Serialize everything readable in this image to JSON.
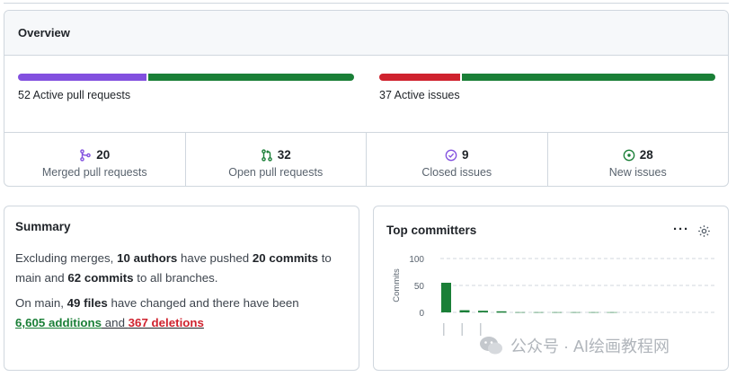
{
  "overview": {
    "title": "Overview",
    "pr_bar": {
      "label": "52 Active pull requests",
      "merged": 20,
      "open": 32
    },
    "issue_bar": {
      "label": "37 Active issues",
      "closed": 9,
      "new": 28
    },
    "stats": [
      {
        "value": "20",
        "label": "Merged pull requests",
        "icon": "merge-icon",
        "color": "#8250df"
      },
      {
        "value": "32",
        "label": "Open pull requests",
        "icon": "pull-request-icon",
        "color": "#1a7f37"
      },
      {
        "value": "9",
        "label": "Closed issues",
        "icon": "check-circle-icon",
        "color": "#8250df"
      },
      {
        "value": "28",
        "label": "New issues",
        "icon": "issue-open-icon",
        "color": "#1a7f37"
      }
    ],
    "colors": {
      "merged": "#8250df",
      "open": "#1a7f37",
      "closed": "#cf222e",
      "new": "#1a7f37"
    }
  },
  "summary": {
    "title": "Summary",
    "p1_a": "Excluding merges, ",
    "p1_authors": "10 authors",
    "p1_b": " have pushed ",
    "p1_commits": "20 commits",
    "p1_c": " to main and ",
    "p1_allcommits": "62 commits",
    "p1_d": " to all branches.",
    "p2_a": "On main, ",
    "p2_files": "49 files",
    "p2_b": " have changed and there have been ",
    "p2_adds": "6,605 additions",
    "p2_and": " and ",
    "p2_dels": "367 deletions"
  },
  "committers": {
    "title": "Top committers",
    "more": "···",
    "gear_icon": "gear-icon"
  },
  "chart_data": {
    "type": "bar",
    "ylabel": "Commits",
    "ylim": [
      0,
      100
    ],
    "yticks": [
      "100",
      "50",
      "0"
    ],
    "values": [
      55,
      4,
      3,
      2,
      1,
      1,
      1,
      1,
      1,
      1
    ],
    "color": "#1a7f37"
  },
  "watermark": {
    "text": "公众号 · AI绘画教程网"
  }
}
